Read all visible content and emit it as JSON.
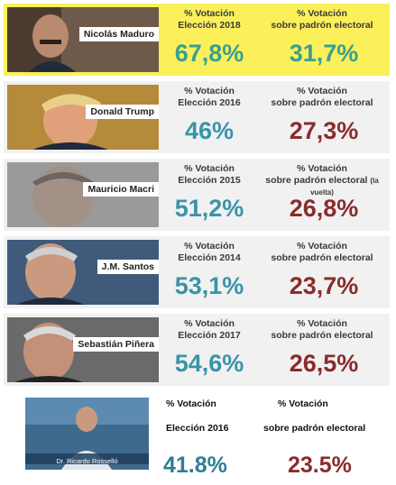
{
  "rows": [
    {
      "name": "Nicolás Maduro",
      "head1a": "% Votación",
      "head1b": "Elección 2018",
      "head2a": "% Votación",
      "head2b": "sobre padrón electoral",
      "head2note": "",
      "val1": "67,8%",
      "val2": "31,7%"
    },
    {
      "name": "Donald Trump",
      "head1a": "% Votación",
      "head1b": "Elección 2016",
      "head2a": "% Votación",
      "head2b": "sobre padrón electoral",
      "head2note": "",
      "val1": "46%",
      "val2": "27,3%"
    },
    {
      "name": "Mauricio Macri",
      "head1a": "% Votación",
      "head1b": "Elección 2015",
      "head2a": "% Votación",
      "head2b": "sobre padrón electoral",
      "head2note": "(la vuelta)",
      "val1": "51,2%",
      "val2": "26,8%"
    },
    {
      "name": "J.M. Santos",
      "head1a": "% Votación",
      "head1b": "Elección 2014",
      "head2a": "% Votación",
      "head2b": "sobre padrón electoral",
      "head2note": "",
      "val1": "53,1%",
      "val2": "23,7%"
    },
    {
      "name": "Sebastián Piñera",
      "head1a": "% Votación",
      "head1b": "Elección 2017",
      "head2a": "% Votación",
      "head2b": "sobre padrón electoral",
      "head2note": "",
      "val1": "54,6%",
      "val2": "26,5%"
    }
  ],
  "bottom": {
    "caption": "Dr. Ricardo Rosselló",
    "head1a": "% Votación",
    "head1b": "Elección 2016",
    "head2a": "% Votación",
    "head2b": "sobre padrón electoral",
    "val1": "41.8%",
    "val2": "23.5%"
  },
  "colors": {
    "highlight": "#fbf05a",
    "row_bg": "#f1f1f1",
    "teal": "#3a94a8",
    "maroon": "#8a2b2b"
  }
}
